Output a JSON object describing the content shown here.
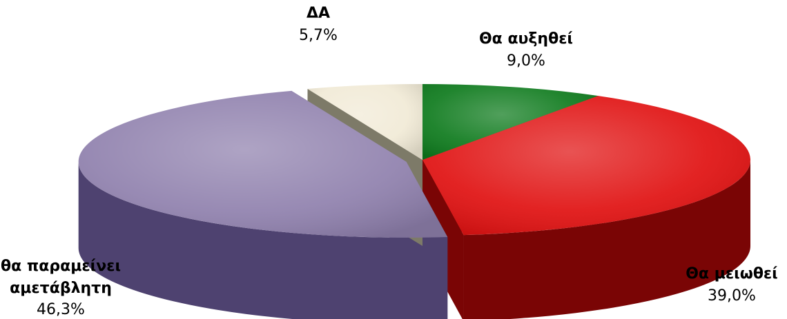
{
  "chart_data": {
    "type": "pie",
    "title": "",
    "slices": [
      {
        "label": "Θα αυξηθεί",
        "label_lines": [
          "Θα αυξηθεί"
        ],
        "percent_label": "9,0%",
        "value": 9.0,
        "colors": {
          "top": "#0d7a1c",
          "side": "#053f0b"
        }
      },
      {
        "label": "Θα μειωθεί",
        "label_lines": [
          "Θα μειωθεί"
        ],
        "percent_label": "39,0%",
        "value": 39.0,
        "colors": {
          "top": "#e01010",
          "side": "#7a0505"
        }
      },
      {
        "label": "θα παραμείνει αμετάβλητη",
        "label_lines": [
          "θα παραμείνει",
          "αμετάβλητη"
        ],
        "percent_label": "46,3%",
        "value": 46.3,
        "colors": {
          "top": "#8f80ad",
          "side": "#4e4270"
        }
      },
      {
        "label": "ΔΑ",
        "label_lines": [
          "ΔΑ"
        ],
        "percent_label": "5,7%",
        "value": 5.7,
        "colors": {
          "top": "#f1ead6",
          "side": "#7d7a68"
        }
      }
    ],
    "legend": "none",
    "labels": "outside"
  }
}
